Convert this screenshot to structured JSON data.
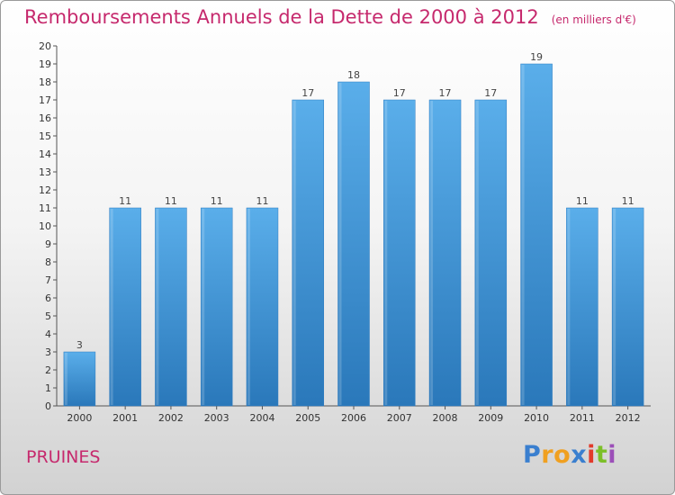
{
  "chart_data": {
    "type": "bar",
    "title": "Remboursements Annuels de la Dette de 2000 à 2012",
    "subtitle": "(en milliers d'€)",
    "categories": [
      "2000",
      "2001",
      "2002",
      "2003",
      "2004",
      "2005",
      "2006",
      "2007",
      "2008",
      "2009",
      "2010",
      "2011",
      "2012"
    ],
    "values": [
      3,
      11,
      11,
      11,
      11,
      17,
      18,
      17,
      17,
      17,
      19,
      11,
      11
    ],
    "data_labels": [
      "3",
      "11",
      "11",
      "11",
      "11",
      "17",
      "18",
      "17",
      "17",
      "17",
      "19",
      "11",
      "11"
    ],
    "y_ticks": [
      "0",
      "1",
      "2",
      "3",
      "4",
      "5",
      "6",
      "7",
      "8",
      "9",
      "10",
      "11",
      "12",
      "13",
      "14",
      "15",
      "16",
      "17",
      "18",
      "19",
      "20"
    ],
    "xlabel": "",
    "ylabel": "",
    "ylim": [
      0,
      20
    ],
    "grid": false,
    "bar_color": "#3f92d8",
    "bar_color_top": "#5aaeea",
    "bar_color_bottom": "#2a78ba"
  },
  "footer": {
    "commune": "PRUINES",
    "brand_letters": [
      "P",
      "r",
      "o",
      "x",
      "i",
      "t",
      "i"
    ],
    "brand_colors": [
      "#3a7fcf",
      "#f0a020",
      "#f0a020",
      "#3a7fcf",
      "#e23a2a",
      "#7cbf28",
      "#9c4fb8"
    ]
  }
}
